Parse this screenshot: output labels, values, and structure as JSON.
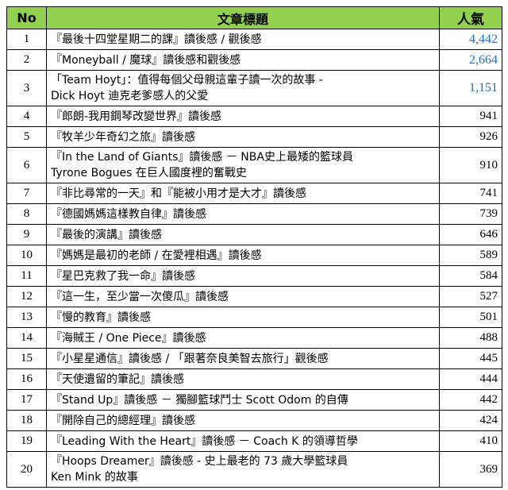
{
  "header": {
    "no": "No",
    "title": "文章標題",
    "popularity": "人氣"
  },
  "colors": {
    "header_bg": "#92d050",
    "top_value": "#1f6fc4",
    "border": "#000000"
  },
  "rows": [
    {
      "no": "1",
      "lines": [
        "『最後十四堂星期二的課』讀後感 / 觀後感"
      ],
      "popularity": "4,442"
    },
    {
      "no": "2",
      "lines": [
        "『Moneyball / 魔球』讀後感和觀後感"
      ],
      "popularity": "2,664"
    },
    {
      "no": "3",
      "lines": [
        "「Team Hoyt」：值得每個父母親這輩子讀一次的故事 -",
        "Dick Hoyt 迪克老爹感人的父愛"
      ],
      "popularity": "1,151"
    },
    {
      "no": "4",
      "lines": [
        "『郎朗-我用鋼琴改變世界』讀後感"
      ],
      "popularity": "941"
    },
    {
      "no": "5",
      "lines": [
        "『牧羊少年奇幻之旅』讀後感"
      ],
      "popularity": "926"
    },
    {
      "no": "6",
      "lines": [
        "『In the Land of Giants』讀後感 － NBA史上最矮的籃球員",
        "Tyrone Bogues 在巨人國度裡的奮戰史"
      ],
      "popularity": "910"
    },
    {
      "no": "7",
      "lines": [
        "『非比尋常的一天』和『能被小用才是大才』讀後感"
      ],
      "popularity": "741"
    },
    {
      "no": "8",
      "lines": [
        "『德國媽媽這樣教自律』讀後感"
      ],
      "popularity": "739"
    },
    {
      "no": "9",
      "lines": [
        "『最後的演講』讀後感"
      ],
      "popularity": "646"
    },
    {
      "no": "10",
      "lines": [
        "『媽媽是最初的老師 / 在愛裡相遇』讀後感"
      ],
      "popularity": "589"
    },
    {
      "no": "11",
      "lines": [
        "『星巴克救了我一命』讀後感"
      ],
      "popularity": "584"
    },
    {
      "no": "12",
      "lines": [
        "『這一生，至少當一次傻瓜』讀後感"
      ],
      "popularity": "527"
    },
    {
      "no": "13",
      "lines": [
        "『慢的教育』讀後感"
      ],
      "popularity": "501"
    },
    {
      "no": "14",
      "lines": [
        "『海賊王 / One Piece』讀後感"
      ],
      "popularity": "488"
    },
    {
      "no": "15",
      "lines": [
        "『小星星通信』讀後感 / 「跟著奈良美智去旅行」觀後感"
      ],
      "popularity": "445"
    },
    {
      "no": "16",
      "lines": [
        "『天使遺留的筆記』讀後感"
      ],
      "popularity": "444"
    },
    {
      "no": "17",
      "lines": [
        "『Stand Up』讀後感 － 獨腳籃球鬥士 Scott Odom 的自傳"
      ],
      "popularity": "442"
    },
    {
      "no": "18",
      "lines": [
        "『開除自己的總經理』讀後感"
      ],
      "popularity": "424"
    },
    {
      "no": "19",
      "lines": [
        "『Leading With the Heart』讀後感 － Coach K 的領導哲學"
      ],
      "popularity": "410"
    },
    {
      "no": "20",
      "lines": [
        "『Hoops Dreamer』讀後感 - 史上最老的 73 歲大學籃球員",
        "Ken Mink 的故事"
      ],
      "popularity": "369"
    }
  ]
}
